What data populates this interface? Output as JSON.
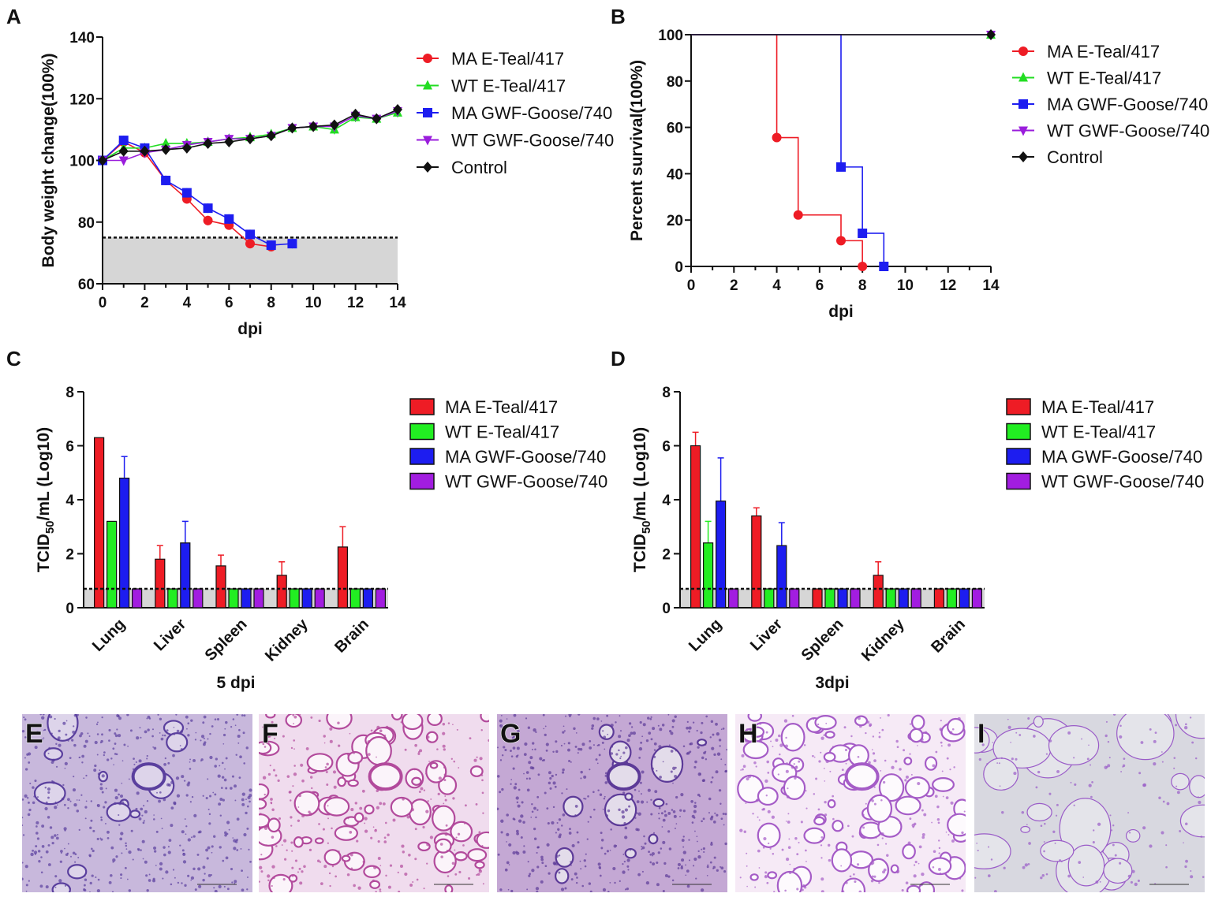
{
  "figure": {
    "panel_labels": [
      "A",
      "B",
      "C",
      "D",
      "E",
      "F",
      "G",
      "H",
      "I"
    ]
  },
  "chart_data": [
    {
      "id": "A",
      "type": "line",
      "title": "",
      "xlabel": "dpi",
      "ylabel": "Body weight change(100%)",
      "xlim": [
        0,
        14
      ],
      "ylim": [
        60,
        140
      ],
      "xticks": [
        0,
        2,
        4,
        6,
        8,
        10,
        12,
        14
      ],
      "yticks": [
        60,
        80,
        100,
        120,
        140
      ],
      "threshold": 75,
      "legend_position": "right",
      "series": [
        {
          "name": "MA E-Teal/417",
          "color": "#ee1c25",
          "marker": "circle",
          "x": [
            0,
            1,
            2,
            3,
            4,
            5,
            6,
            7,
            8
          ],
          "y": [
            100,
            106,
            102.5,
            93.5,
            87.5,
            80.5,
            79,
            73,
            72
          ]
        },
        {
          "name": "WT E-Teal/417",
          "color": "#22dd22",
          "marker": "triangle-up",
          "x": [
            0,
            1,
            2,
            3,
            4,
            5,
            6,
            7,
            8,
            9,
            10,
            11,
            12,
            13,
            14
          ],
          "y": [
            100,
            104,
            104,
            105.5,
            105.5,
            106,
            107,
            107.5,
            108.5,
            110.5,
            111,
            110,
            114,
            113.5,
            115.5
          ]
        },
        {
          "name": "MA GWF-Goose/740",
          "color": "#1d1df0",
          "marker": "square",
          "x": [
            0,
            1,
            2,
            3,
            4,
            5,
            6,
            7,
            8,
            9
          ],
          "y": [
            100,
            106.5,
            104,
            93.5,
            89.5,
            84.5,
            81,
            76,
            72.5,
            73
          ]
        },
        {
          "name": "WT GWF-Goose/740",
          "color": "#9a1ddc",
          "marker": "triangle-down",
          "x": [
            0,
            1,
            2,
            3,
            4,
            5,
            6,
            7,
            8,
            9,
            10,
            11,
            12,
            13,
            14
          ],
          "y": [
            100,
            100,
            102.5,
            103.5,
            105,
            106,
            107,
            107,
            108,
            110.5,
            111,
            111,
            114.5,
            113.5,
            116
          ]
        },
        {
          "name": "Control",
          "color": "#111111",
          "marker": "diamond",
          "x": [
            0,
            1,
            2,
            3,
            4,
            5,
            6,
            7,
            8,
            9,
            10,
            11,
            12,
            13,
            14
          ],
          "y": [
            100,
            103,
            103,
            103.5,
            104,
            105.5,
            106,
            107,
            108,
            110.5,
            111,
            111.5,
            115,
            113.5,
            116.5
          ]
        }
      ]
    },
    {
      "id": "B",
      "type": "line",
      "step": true,
      "title": "",
      "xlabel": "dpi",
      "ylabel": "Percent survival(100%)",
      "xlim": [
        0,
        14
      ],
      "ylim": [
        0,
        100
      ],
      "xticks": [
        0,
        2,
        4,
        6,
        8,
        10,
        12,
        14
      ],
      "yticks": [
        0,
        20,
        40,
        60,
        80,
        100
      ],
      "legend_position": "right",
      "series": [
        {
          "name": "MA E-Teal/417",
          "color": "#ee1c25",
          "marker": "circle",
          "x": [
            0,
            4,
            5,
            7,
            8
          ],
          "y": [
            100,
            55.6,
            22.2,
            11.1,
            0
          ],
          "markers_x": [
            4,
            5,
            7,
            8
          ]
        },
        {
          "name": "WT E-Teal/417",
          "color": "#22dd22",
          "marker": "triangle-up",
          "x": [
            0,
            14
          ],
          "y": [
            100,
            100
          ],
          "markers_x": [
            14
          ]
        },
        {
          "name": "MA GWF-Goose/740",
          "color": "#1d1df0",
          "marker": "square",
          "x": [
            0,
            7,
            8,
            9
          ],
          "y": [
            100,
            42.9,
            14.3,
            0
          ],
          "markers_x": [
            7,
            8,
            9
          ]
        },
        {
          "name": "WT GWF-Goose/740",
          "color": "#9a1ddc",
          "marker": "triangle-down",
          "x": [
            0,
            14
          ],
          "y": [
            100,
            100
          ],
          "markers_x": [
            14
          ]
        },
        {
          "name": "Control",
          "color": "#111111",
          "marker": "diamond",
          "x": [
            0,
            14
          ],
          "y": [
            100,
            100
          ],
          "markers_x": [
            14
          ]
        }
      ]
    },
    {
      "id": "C",
      "type": "bar",
      "title": "",
      "xlabel": "5 dpi",
      "ylabel_main": "TCID",
      "ylabel_sub": "50",
      "ylabel_rest": "/mL (Log10)",
      "ylim": [
        0,
        8
      ],
      "yticks": [
        0,
        2,
        4,
        6,
        8
      ],
      "threshold": 0.7,
      "categories": [
        "Lung",
        "Liver",
        "Spleen",
        "Kidney",
        "Brain"
      ],
      "legend_position": "right",
      "series": [
        {
          "name": "MA E-Teal/417",
          "color": "#ee1c25",
          "values": [
            6.3,
            1.8,
            1.55,
            1.2,
            2.25
          ],
          "errors": [
            0,
            0.5,
            0.4,
            0.5,
            0.75
          ]
        },
        {
          "name": "WT E-Teal/417",
          "color": "#22ee22",
          "values": [
            3.2,
            0.7,
            0.7,
            0.7,
            0.7
          ],
          "errors": [
            0,
            0,
            0,
            0,
            0
          ]
        },
        {
          "name": "MA GWF-Goose/740",
          "color": "#1d1df0",
          "values": [
            4.8,
            2.4,
            0.7,
            0.7,
            0.7
          ],
          "errors": [
            0.8,
            0.8,
            0,
            0,
            0
          ]
        },
        {
          "name": "WT GWF-Goose/740",
          "color": "#a21de0",
          "values": [
            0.7,
            0.7,
            0.7,
            0.7,
            0.7
          ],
          "errors": [
            0,
            0,
            0,
            0,
            0
          ]
        }
      ]
    },
    {
      "id": "D",
      "type": "bar",
      "title": "",
      "xlabel": "3dpi",
      "ylabel_main": "TCID",
      "ylabel_sub": "50",
      "ylabel_rest": "/mL (Log10)",
      "ylim": [
        0,
        8
      ],
      "yticks": [
        0,
        2,
        4,
        6,
        8
      ],
      "threshold": 0.7,
      "categories": [
        "Lung",
        "Liver",
        "Spleen",
        "Kidney",
        "Brain"
      ],
      "legend_position": "right",
      "series": [
        {
          "name": "MA E-Teal/417",
          "color": "#ee1c25",
          "values": [
            6.0,
            3.4,
            0.7,
            1.2,
            0.7
          ],
          "errors": [
            0.5,
            0.3,
            0,
            0.5,
            0
          ]
        },
        {
          "name": "WT E-Teal/417",
          "color": "#22ee22",
          "values": [
            2.4,
            0.7,
            0.7,
            0.7,
            0.7
          ],
          "errors": [
            0.8,
            0,
            0,
            0,
            0
          ]
        },
        {
          "name": "MA GWF-Goose/740",
          "color": "#1d1df0",
          "values": [
            3.95,
            2.3,
            0.7,
            0.7,
            0.7
          ],
          "errors": [
            1.6,
            0.85,
            0,
            0,
            0
          ]
        },
        {
          "name": "WT GWF-Goose/740",
          "color": "#a21de0",
          "values": [
            0.7,
            0.7,
            0.7,
            0.7,
            0.7
          ],
          "errors": [
            0,
            0,
            0,
            0,
            0
          ]
        }
      ]
    }
  ],
  "histology": [
    {
      "label": "E",
      "tone": "dense",
      "bg": "#c8b8dc",
      "cell": "#5a3f9e",
      "space": "#ddd4ea"
    },
    {
      "label": "F",
      "tone": "open",
      "bg": "#f0dcee",
      "cell": "#b24a9c",
      "space": "#fbf4fa"
    },
    {
      "label": "G",
      "tone": "dense",
      "bg": "#c4a8d4",
      "cell": "#5c3a98",
      "space": "#e3dcea"
    },
    {
      "label": "H",
      "tone": "open",
      "bg": "#f6eaf6",
      "cell": "#a55cc7",
      "space": "#fdfafd"
    },
    {
      "label": "I",
      "tone": "sparse",
      "bg": "#d8d8e0",
      "cell": "#9a5cc8",
      "space": "#e4e4ea"
    }
  ]
}
